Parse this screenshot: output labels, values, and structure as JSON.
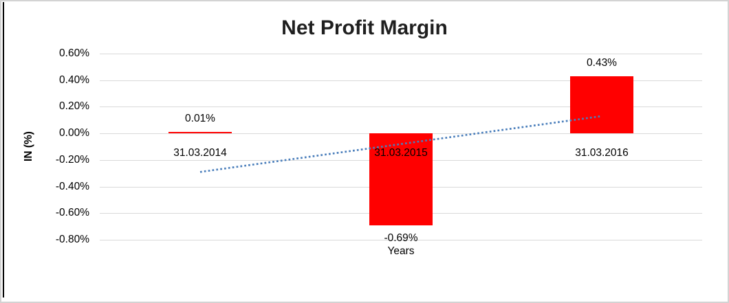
{
  "chart_data": {
    "type": "bar",
    "title": "Net Profit Margin",
    "ylabel": "IN (%)",
    "xlabel": "Years",
    "categories": [
      "31.03.2014",
      "31.03.2015",
      "31.03.2016"
    ],
    "values": [
      0.01,
      -0.69,
      0.43
    ],
    "data_labels": [
      "0.01%",
      "-0.69%",
      "0.43%"
    ],
    "bar_color": "#FF0000",
    "ylim": [
      -0.8,
      0.6
    ],
    "yticks": [
      {
        "value": 0.6,
        "label": "0.60%"
      },
      {
        "value": 0.4,
        "label": "0.40%"
      },
      {
        "value": 0.2,
        "label": "0.20%"
      },
      {
        "value": 0.0,
        "label": "0.00%"
      },
      {
        "value": -0.2,
        "label": "-0.20%"
      },
      {
        "value": -0.4,
        "label": "-0.40%"
      },
      {
        "value": -0.6,
        "label": "-0.60%"
      },
      {
        "value": -0.8,
        "label": "-0.80%"
      }
    ],
    "gridlines": true,
    "gridline_color": "#D9D9D9",
    "legend": "none",
    "trendline": {
      "type": "linear",
      "style": "dotted",
      "color": "#4A7EBB",
      "start_value": -0.29,
      "end_value": 0.13
    }
  }
}
